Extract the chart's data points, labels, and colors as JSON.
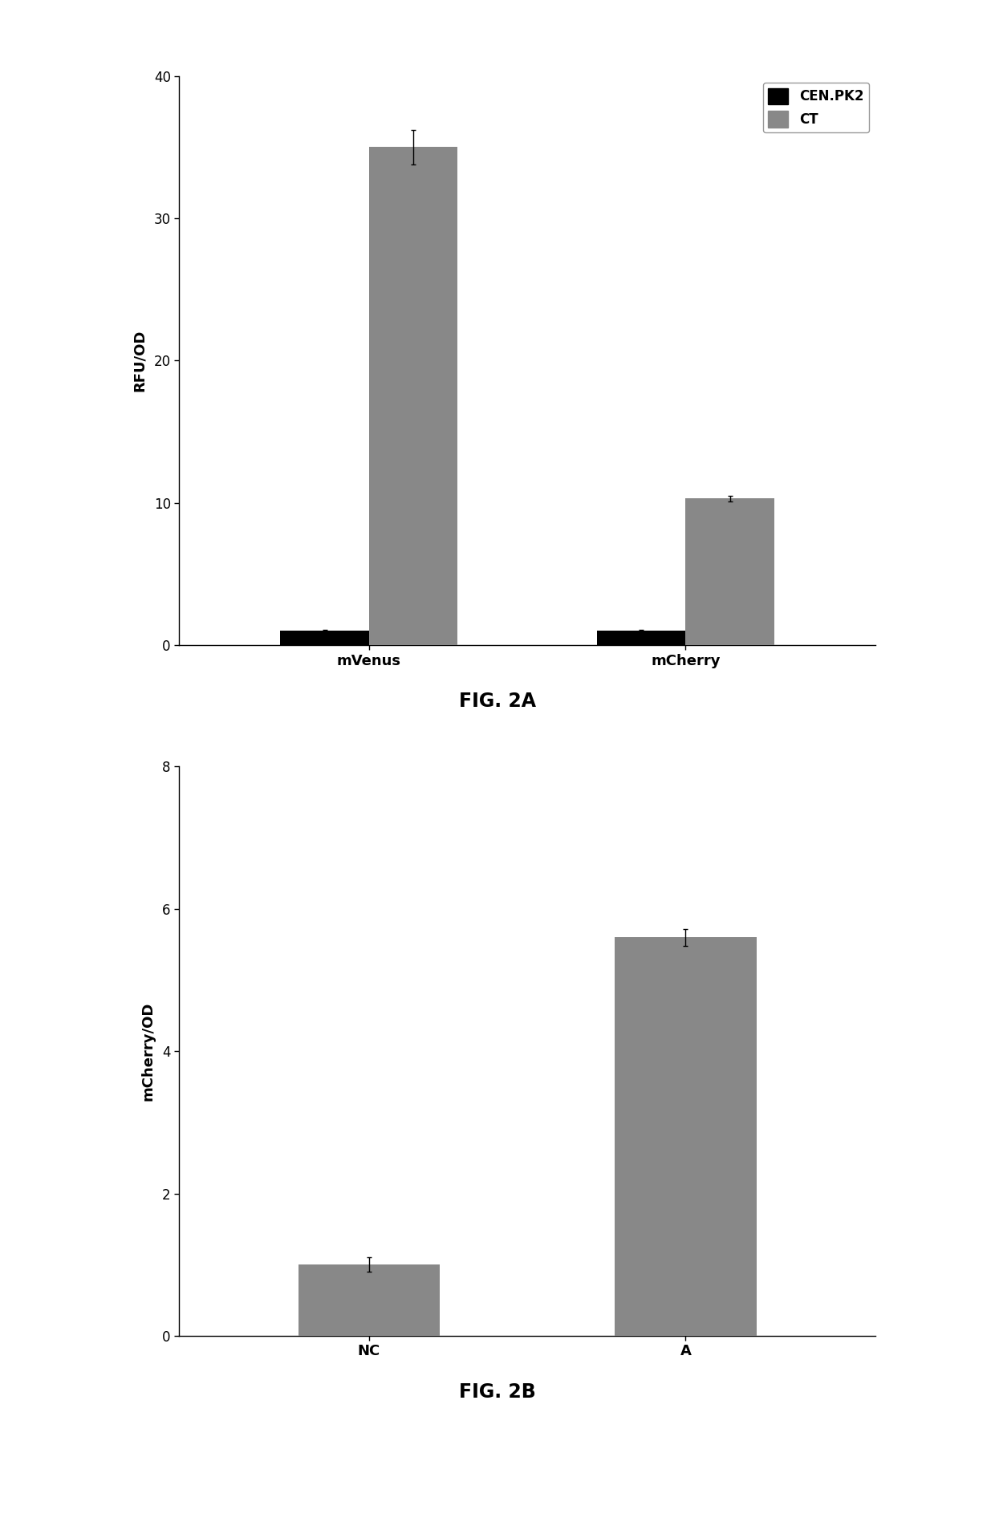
{
  "fig2a": {
    "categories": [
      "mVenus",
      "mCherry"
    ],
    "cenpk2_values": [
      1.0,
      1.0
    ],
    "ct_values": [
      35.0,
      10.3
    ],
    "cenpk2_errors": [
      0.05,
      0.05
    ],
    "ct_errors": [
      1.2,
      0.2
    ],
    "ylabel": "RFU/OD",
    "ylim": [
      0,
      40
    ],
    "yticks": [
      0,
      10,
      20,
      30,
      40
    ],
    "legend_labels": [
      "CEN.PK2",
      "CT"
    ],
    "cenpk2_color": "#000000",
    "ct_color": "#888888",
    "bar_width": 0.28,
    "caption": "FIG. 2A"
  },
  "fig2b": {
    "categories": [
      "NC",
      "A"
    ],
    "values": [
      1.0,
      5.6
    ],
    "errors": [
      0.1,
      0.12
    ],
    "ylabel": "mCherry/OD",
    "ylim": [
      0,
      8
    ],
    "yticks": [
      0,
      2,
      4,
      6,
      8
    ],
    "bar_color": "#888888",
    "bar_width": 0.28,
    "caption": "FIG. 2B"
  },
  "bg_color": "#ffffff",
  "font_size_label": 13,
  "font_size_tick": 12,
  "font_size_caption": 17,
  "font_size_legend": 12
}
